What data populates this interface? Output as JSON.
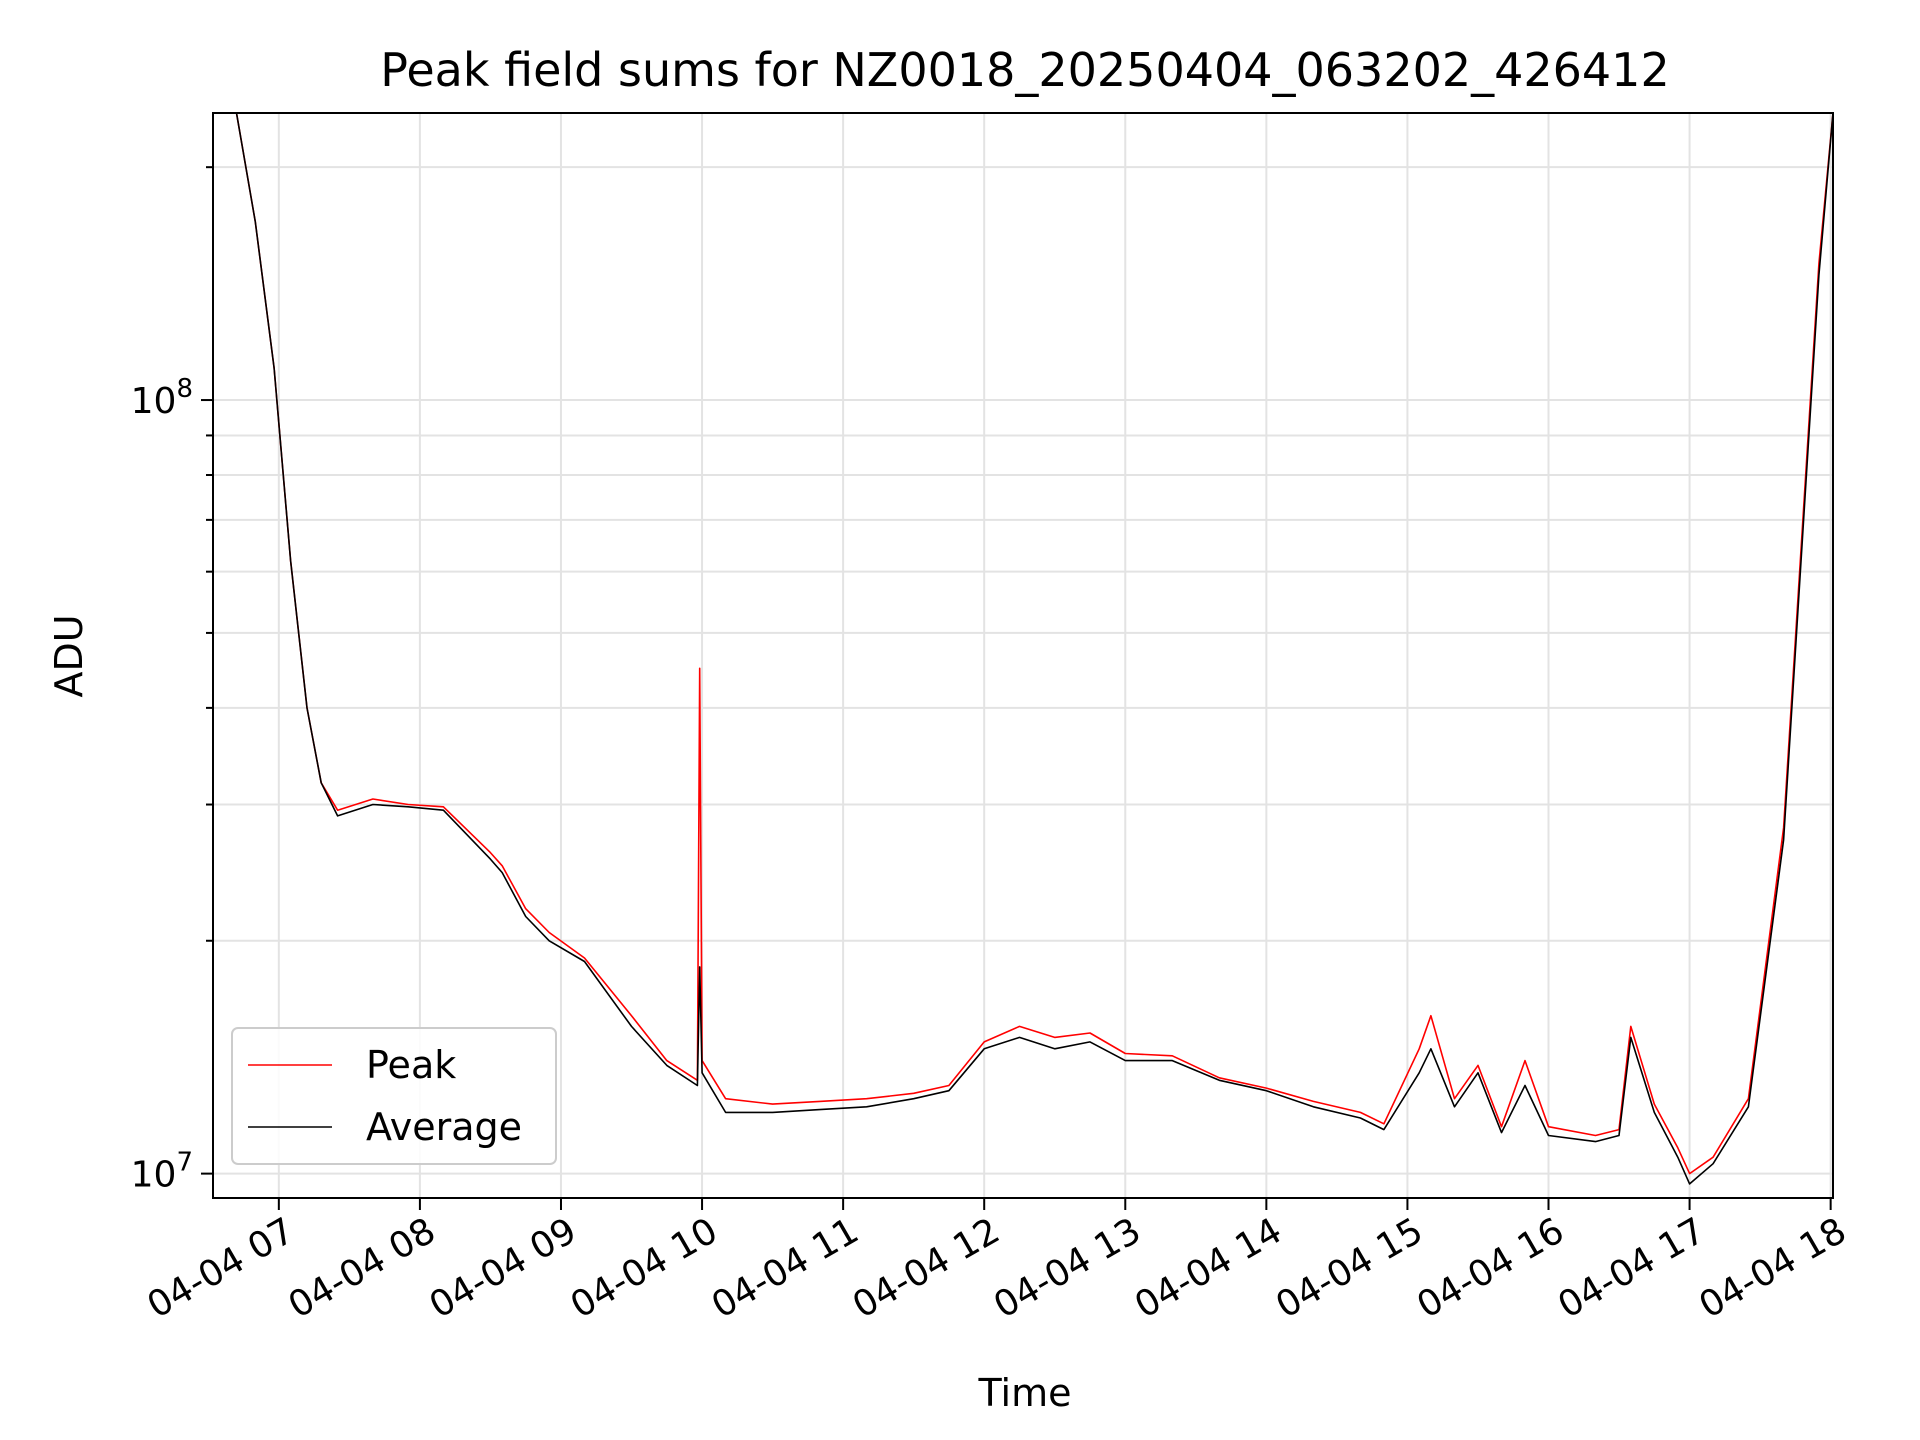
{
  "chart_data": {
    "type": "line",
    "title": "Peak field sums for NZ0018_20250404_063202_426412",
    "xlabel": "Time",
    "ylabel": "ADU",
    "x_type": "time",
    "xlim": [
      "2025-04-04 06:32",
      "2025-04-04 18:01"
    ],
    "ylim": [
      9300000,
      235000000
    ],
    "y_scale": "log",
    "grid": true,
    "legend_position": "lower-left",
    "x_tick_labels": [
      "04-04 07",
      "04-04 08",
      "04-04 09",
      "04-04 10",
      "04-04 11",
      "04-04 12",
      "04-04 13",
      "04-04 14",
      "04-04 15",
      "04-04 16",
      "04-04 17",
      "04-04 18"
    ],
    "x_tick_values": [
      "2025-04-04 07:00",
      "2025-04-04 08:00",
      "2025-04-04 09:00",
      "2025-04-04 10:00",
      "2025-04-04 11:00",
      "2025-04-04 12:00",
      "2025-04-04 13:00",
      "2025-04-04 14:00",
      "2025-04-04 15:00",
      "2025-04-04 16:00",
      "2025-04-04 17:00",
      "2025-04-04 18:00"
    ],
    "y_tick_labels": [
      {
        "base": "10",
        "exp": "7",
        "value": 10000000
      },
      {
        "base": "10",
        "exp": "8",
        "value": 100000000
      }
    ],
    "series": [
      {
        "name": "Peak",
        "color": "#ff0000",
        "x": [
          "2025-04-04 06:32",
          "2025-04-04 06:42",
          "2025-04-04 06:50",
          "2025-04-04 06:58",
          "2025-04-04 07:05",
          "2025-04-04 07:12",
          "2025-04-04 07:18",
          "2025-04-04 07:25",
          "2025-04-04 07:40",
          "2025-04-04 07:55",
          "2025-04-04 08:10",
          "2025-04-04 08:30",
          "2025-04-04 08:35",
          "2025-04-04 08:45",
          "2025-04-04 08:55",
          "2025-04-04 09:10",
          "2025-04-04 09:30",
          "2025-04-04 09:45",
          "2025-04-04 09:58",
          "2025-04-04 09:59",
          "2025-04-04 10:00",
          "2025-04-04 10:10",
          "2025-04-04 10:30",
          "2025-04-04 10:50",
          "2025-04-04 11:10",
          "2025-04-04 11:30",
          "2025-04-04 11:45",
          "2025-04-04 12:00",
          "2025-04-04 12:15",
          "2025-04-04 12:30",
          "2025-04-04 12:45",
          "2025-04-04 13:00",
          "2025-04-04 13:20",
          "2025-04-04 13:40",
          "2025-04-04 14:00",
          "2025-04-04 14:20",
          "2025-04-04 14:40",
          "2025-04-04 14:50",
          "2025-04-04 15:05",
          "2025-04-04 15:10",
          "2025-04-04 15:20",
          "2025-04-04 15:30",
          "2025-04-04 15:40",
          "2025-04-04 15:50",
          "2025-04-04 16:00",
          "2025-04-04 16:20",
          "2025-04-04 16:30",
          "2025-04-04 16:35",
          "2025-04-04 16:45",
          "2025-04-04 16:55",
          "2025-04-04 17:00",
          "2025-04-04 17:10",
          "2025-04-04 17:25",
          "2025-04-04 17:40",
          "2025-04-04 17:55",
          "2025-04-04 18:01"
        ],
        "y": [
          235000000,
          235000000,
          170000000,
          110000000,
          62000000,
          40000000,
          32000000,
          29500000,
          30500000,
          30000000,
          29800000,
          26000000,
          25000000,
          22000000,
          20500000,
          19000000,
          16000000,
          14000000,
          13200000,
          45000000,
          14000000,
          12500000,
          12300000,
          12400000,
          12500000,
          12700000,
          13000000,
          14800000,
          15500000,
          15000000,
          15200000,
          14300000,
          14200000,
          13300000,
          12900000,
          12400000,
          12000000,
          11600000,
          14500000,
          16000000,
          12500000,
          13800000,
          11500000,
          14000000,
          11500000,
          11200000,
          11400000,
          15500000,
          12300000,
          10800000,
          10000000,
          10500000,
          12500000,
          28000000,
          150000000,
          235000000
        ]
      },
      {
        "name": "Average",
        "color": "#000000",
        "x": [
          "2025-04-04 06:32",
          "2025-04-04 06:42",
          "2025-04-04 06:50",
          "2025-04-04 06:58",
          "2025-04-04 07:05",
          "2025-04-04 07:12",
          "2025-04-04 07:18",
          "2025-04-04 07:25",
          "2025-04-04 07:40",
          "2025-04-04 07:55",
          "2025-04-04 08:10",
          "2025-04-04 08:30",
          "2025-04-04 08:35",
          "2025-04-04 08:45",
          "2025-04-04 08:55",
          "2025-04-04 09:10",
          "2025-04-04 09:30",
          "2025-04-04 09:45",
          "2025-04-04 09:58",
          "2025-04-04 09:59",
          "2025-04-04 10:00",
          "2025-04-04 10:10",
          "2025-04-04 10:30",
          "2025-04-04 10:50",
          "2025-04-04 11:10",
          "2025-04-04 11:30",
          "2025-04-04 11:45",
          "2025-04-04 12:00",
          "2025-04-04 12:15",
          "2025-04-04 12:30",
          "2025-04-04 12:45",
          "2025-04-04 13:00",
          "2025-04-04 13:20",
          "2025-04-04 13:40",
          "2025-04-04 14:00",
          "2025-04-04 14:20",
          "2025-04-04 14:40",
          "2025-04-04 14:50",
          "2025-04-04 15:05",
          "2025-04-04 15:10",
          "2025-04-04 15:20",
          "2025-04-04 15:30",
          "2025-04-04 15:40",
          "2025-04-04 15:50",
          "2025-04-04 16:00",
          "2025-04-04 16:20",
          "2025-04-04 16:30",
          "2025-04-04 16:35",
          "2025-04-04 16:45",
          "2025-04-04 16:55",
          "2025-04-04 17:00",
          "2025-04-04 17:10",
          "2025-04-04 17:25",
          "2025-04-04 17:40",
          "2025-04-04 17:55",
          "2025-04-04 18:01"
        ],
        "y": [
          235000000,
          235000000,
          170000000,
          110000000,
          62000000,
          40000000,
          32000000,
          29000000,
          30000000,
          29800000,
          29500000,
          25500000,
          24500000,
          21500000,
          20000000,
          18800000,
          15500000,
          13800000,
          13000000,
          18500000,
          13500000,
          12000000,
          12000000,
          12100000,
          12200000,
          12500000,
          12800000,
          14500000,
          15000000,
          14500000,
          14800000,
          14000000,
          14000000,
          13200000,
          12800000,
          12200000,
          11800000,
          11400000,
          13500000,
          14500000,
          12200000,
          13500000,
          11300000,
          13000000,
          11200000,
          11000000,
          11200000,
          15000000,
          12000000,
          10500000,
          9700000,
          10300000,
          12200000,
          27000000,
          145000000,
          235000000
        ]
      }
    ]
  }
}
